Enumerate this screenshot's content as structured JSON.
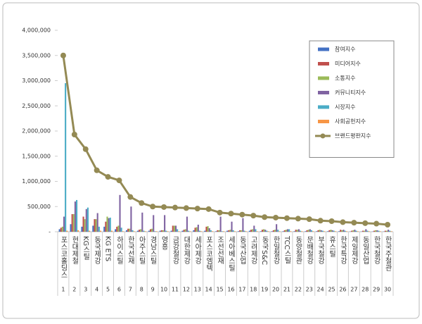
{
  "chart_data": {
    "type": "bar",
    "categories": [
      "포스코홀딩스",
      "현대제철",
      "KG스틸",
      "동국제강",
      "KG ETS",
      "하이스틸",
      "한국선재",
      "아주스틸",
      "경남스틸",
      "영흥",
      "금강철강",
      "대한제강",
      "세아제강",
      "포스코엠텍",
      "조선선재",
      "세아베스틸",
      "동국산업",
      "고려제강",
      "동국S&C",
      "한일철강",
      "TCC스틸",
      "동양철관",
      "문배철강",
      "부국철강",
      "휴스틸",
      "한국특강",
      "제일제강",
      "동일산업",
      "한국철강",
      "한국주철관"
    ],
    "ranks": [
      1,
      2,
      3,
      4,
      5,
      6,
      7,
      8,
      9,
      10,
      11,
      12,
      13,
      14,
      15,
      16,
      17,
      18,
      19,
      20,
      21,
      22,
      23,
      24,
      25,
      26,
      27,
      28,
      29,
      30
    ],
    "series": [
      {
        "name": "참여지수",
        "color": "#4472c4",
        "values": [
          50000,
          150000,
          100000,
          120000,
          100000,
          50000,
          30000,
          20000,
          20000,
          20000,
          20000,
          20000,
          30000,
          20000,
          10000,
          20000,
          10000,
          20000,
          10000,
          10000,
          10000,
          10000,
          10000,
          10000,
          10000,
          10000,
          5000,
          5000,
          5000,
          5000
        ]
      },
      {
        "name": "미디어지수",
        "color": "#c0504d",
        "values": [
          80000,
          350000,
          300000,
          250000,
          200000,
          100000,
          60000,
          40000,
          50000,
          30000,
          120000,
          40000,
          80000,
          100000,
          30000,
          30000,
          30000,
          40000,
          40000,
          30000,
          30000,
          40000,
          30000,
          30000,
          30000,
          40000,
          20000,
          20000,
          20000,
          20000
        ]
      },
      {
        "name": "소통지수",
        "color": "#9bbb59",
        "values": [
          100000,
          350000,
          250000,
          250000,
          300000,
          120000,
          60000,
          50000,
          60000,
          30000,
          120000,
          50000,
          90000,
          110000,
          30000,
          40000,
          30000,
          50000,
          50000,
          40000,
          40000,
          40000,
          40000,
          40000,
          40000,
          30000,
          30000,
          20000,
          30000,
          20000
        ]
      },
      {
        "name": "커뮤니티지수",
        "color": "#8064a2",
        "values": [
          300000,
          600000,
          450000,
          370000,
          270000,
          730000,
          500000,
          380000,
          330000,
          330000,
          120000,
          300000,
          140000,
          70000,
          300000,
          200000,
          270000,
          120000,
          40000,
          150000,
          50000,
          50000,
          50000,
          30000,
          30000,
          40000,
          40000,
          50000,
          30000,
          40000
        ]
      },
      {
        "name": "시장지수",
        "color": "#4bacc6",
        "values": [
          2950000,
          630000,
          480000,
          100000,
          280000,
          80000,
          30000,
          20000,
          10000,
          20000,
          50000,
          20000,
          20000,
          30000,
          10000,
          30000,
          20000,
          50000,
          20000,
          40000,
          50000,
          20000,
          30000,
          20000,
          20000,
          20000,
          20000,
          20000,
          20000,
          20000
        ]
      },
      {
        "name": "사회공헌지수",
        "color": "#f79646",
        "values": [
          20000,
          30000,
          20000,
          20000,
          20000,
          10000,
          10000,
          10000,
          10000,
          10000,
          10000,
          10000,
          10000,
          10000,
          10000,
          10000,
          10000,
          10000,
          10000,
          10000,
          10000,
          10000,
          10000,
          10000,
          10000,
          10000,
          10000,
          10000,
          10000,
          10000
        ]
      },
      {
        "name": "브랜드평판지수",
        "color": "#948a54",
        "type": "line",
        "values": [
          3500000,
          1930000,
          1640000,
          1220000,
          1090000,
          1020000,
          690000,
          570000,
          500000,
          490000,
          480000,
          470000,
          460000,
          450000,
          380000,
          360000,
          340000,
          320000,
          290000,
          280000,
          270000,
          260000,
          250000,
          220000,
          210000,
          190000,
          180000,
          170000,
          160000,
          140000
        ]
      }
    ],
    "ylim": [
      0,
      4000000
    ],
    "yticks": [
      {
        "value": 0,
        "label": "-"
      },
      {
        "value": 500000,
        "label": "500,000"
      },
      {
        "value": 1000000,
        "label": "1,000,000"
      },
      {
        "value": 1500000,
        "label": "1,500,000"
      },
      {
        "value": 2000000,
        "label": "2,000,000"
      },
      {
        "value": 2500000,
        "label": "2,500,000"
      },
      {
        "value": 3000000,
        "label": "3,000,000"
      },
      {
        "value": 3500000,
        "label": "3,500,000"
      },
      {
        "value": 4000000,
        "label": "4,000,000"
      }
    ],
    "legend": "upper right"
  }
}
